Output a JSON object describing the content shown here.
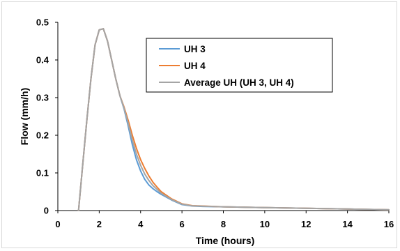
{
  "chart_data": {
    "type": "line",
    "title": "",
    "xlabel": "Time (hours)",
    "ylabel": "Flow (mm/h)",
    "xlim": [
      0,
      16
    ],
    "ylim": [
      0,
      0.5
    ],
    "x_ticks": [
      "0",
      "2",
      "4",
      "6",
      "8",
      "10",
      "12",
      "14",
      "16"
    ],
    "y_ticks": [
      "0",
      "0.1",
      "0.2",
      "0.3",
      "0.4",
      "0.5"
    ],
    "grid": false,
    "legend_position": "top-right",
    "series": [
      {
        "name": "UH 3",
        "color": "#5b9bd5",
        "x": [
          1.0,
          1.2,
          1.4,
          1.6,
          1.8,
          2.0,
          2.2,
          2.4,
          2.6,
          2.8,
          3.0,
          3.2,
          3.4,
          3.6,
          3.8,
          4.0,
          4.2,
          4.4,
          4.6,
          4.8,
          5.0,
          5.5,
          6.0,
          6.5,
          7.0,
          8.0,
          10.0,
          12.0,
          14.0,
          16.0
        ],
        "y": [
          0.0,
          0.12,
          0.24,
          0.35,
          0.44,
          0.48,
          0.483,
          0.45,
          0.4,
          0.35,
          0.305,
          0.27,
          0.225,
          0.175,
          0.135,
          0.105,
          0.083,
          0.068,
          0.058,
          0.05,
          0.043,
          0.028,
          0.016,
          0.012,
          0.011,
          0.01,
          0.008,
          0.006,
          0.004,
          0.002
        ]
      },
      {
        "name": "UH 4",
        "color": "#ed7d31",
        "x": [
          1.0,
          1.2,
          1.4,
          1.6,
          1.8,
          2.0,
          2.2,
          2.4,
          2.6,
          2.8,
          3.0,
          3.2,
          3.4,
          3.6,
          3.8,
          4.0,
          4.2,
          4.4,
          4.6,
          4.8,
          5.0,
          5.5,
          6.0,
          6.5,
          7.0,
          8.0,
          10.0,
          12.0,
          14.0,
          16.0
        ],
        "y": [
          0.0,
          0.12,
          0.24,
          0.35,
          0.44,
          0.48,
          0.483,
          0.45,
          0.4,
          0.35,
          0.305,
          0.275,
          0.24,
          0.2,
          0.165,
          0.135,
          0.112,
          0.092,
          0.075,
          0.062,
          0.05,
          0.031,
          0.018,
          0.013,
          0.012,
          0.01,
          0.008,
          0.006,
          0.004,
          0.002
        ]
      },
      {
        "name": "Average UH (UH 3, UH 4)",
        "color": "#a5a5a5",
        "x": [
          1.0,
          1.2,
          1.4,
          1.6,
          1.8,
          2.0,
          2.2,
          2.4,
          2.6,
          2.8,
          3.0,
          3.2,
          3.4,
          3.6,
          3.8,
          4.0,
          4.2,
          4.4,
          4.6,
          4.8,
          5.0,
          5.5,
          6.0,
          6.5,
          7.0,
          8.0,
          10.0,
          12.0,
          14.0,
          16.0
        ],
        "y": [
          0.0,
          0.12,
          0.24,
          0.35,
          0.44,
          0.48,
          0.483,
          0.45,
          0.4,
          0.35,
          0.305,
          0.272,
          0.232,
          0.187,
          0.15,
          0.12,
          0.097,
          0.08,
          0.066,
          0.056,
          0.046,
          0.029,
          0.017,
          0.0125,
          0.0115,
          0.01,
          0.008,
          0.006,
          0.004,
          0.002
        ]
      }
    ]
  }
}
